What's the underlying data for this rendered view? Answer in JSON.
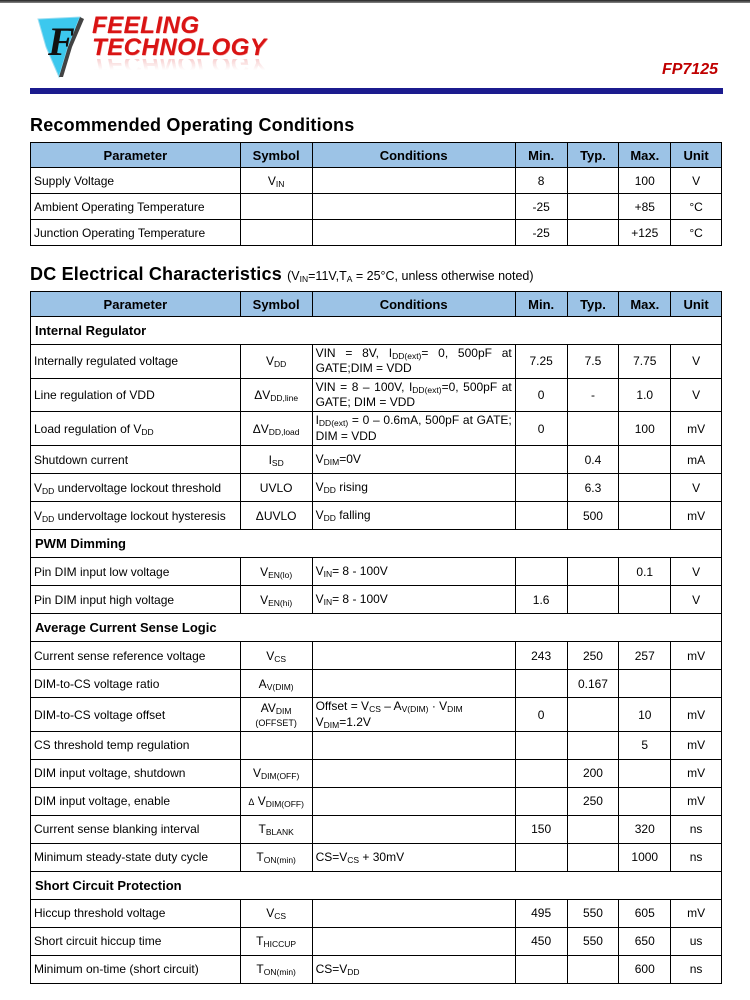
{
  "logo": {
    "line1": "FEELING",
    "line2": "TECHNOLOGY"
  },
  "page": {
    "part_number": "FP7125"
  },
  "colors": {
    "table_header_bg": "#9CC3E6",
    "brand_red": "#D91414",
    "part_number_red": "#C00000",
    "header_rule_navy": "#1B1B8E"
  },
  "roc_table": {
    "title": "Recommended Operating Conditions",
    "columns": [
      "Parameter",
      "Symbol",
      "Conditions",
      "Min.",
      "Typ.",
      "Max.",
      "Unit"
    ],
    "rows": [
      {
        "parameter": "Supply Voltage",
        "symbol": "V~IN~",
        "conditions": "",
        "min": "8",
        "typ": "",
        "max": "100",
        "unit": "V"
      },
      {
        "parameter": "Ambient Operating Temperature",
        "symbol": "",
        "conditions": "",
        "min": "-25",
        "typ": "",
        "max": "+85",
        "unit": "°C"
      },
      {
        "parameter": "Junction Operating Temperature",
        "symbol": "",
        "conditions": "",
        "min": "-25",
        "typ": "",
        "max": "+125",
        "unit": "°C"
      }
    ]
  },
  "dc_table": {
    "title": "DC Electrical Characteristics",
    "subtitle": "(V~IN~=11V,T~A~ = 25°C, unless otherwise noted)",
    "columns": [
      "Parameter",
      "Symbol",
      "Conditions",
      "Min.",
      "Typ.",
      "Max.",
      "Unit"
    ],
    "rows": [
      {
        "section": "Internal Regulator"
      },
      {
        "parameter": "Internally regulated voltage",
        "symbol": "V~DD~",
        "conditions": "VIN = 8V, I~DD(ext)~= 0, 500pF at GATE;DIM = VDD",
        "justify": true,
        "min": "7.25",
        "typ": "7.5",
        "max": "7.75",
        "unit": "V"
      },
      {
        "parameter": "Line regulation of VDD",
        "symbol": "ΔV~DD,line~",
        "conditions": "VIN = 8 – 100V, I~DD(ext)~=0, 500pF at GATE; DIM = VDD",
        "justify": true,
        "min": "0",
        "typ": "-",
        "max": "1.0",
        "unit": "V"
      },
      {
        "parameter": "Load regulation of V~DD~",
        "symbol": "ΔV~DD,load~",
        "conditions": "I~DD(ext)~ = 0 – 0.6mA, 500pF at GATE; DIM = VDD",
        "justify": true,
        "min": "0",
        "typ": "",
        "max": "100",
        "unit": "mV"
      },
      {
        "parameter": "Shutdown current",
        "symbol": "I~SD~",
        "conditions": "V~DIM~=0V",
        "min": "",
        "typ": "0.4",
        "max": "",
        "unit": "mA"
      },
      {
        "parameter": "V~DD~ undervoltage lockout threshold",
        "symbol": "UVLO",
        "conditions": "V~DD~ rising",
        "min": "",
        "typ": "6.3",
        "max": "",
        "unit": "V"
      },
      {
        "parameter": "V~DD~ undervoltage lockout hysteresis",
        "symbol": "ΔUVLO",
        "conditions": "V~DD~ falling",
        "min": "",
        "typ": "500",
        "max": "",
        "unit": "mV"
      },
      {
        "section": "PWM Dimming"
      },
      {
        "parameter": "Pin DIM input low voltage",
        "symbol": "V~EN(lo)~",
        "conditions": "V~IN~= 8 - 100V",
        "min": "",
        "typ": "",
        "max": "0.1",
        "unit": "V"
      },
      {
        "parameter": "Pin DIM input high voltage",
        "symbol": "V~EN(hi)~",
        "conditions": "V~IN~= 8 - 100V",
        "min": "1.6",
        "typ": "",
        "max": "",
        "unit": "V"
      },
      {
        "section": "Average Current Sense Logic"
      },
      {
        "parameter": "Current sense reference voltage",
        "symbol": "V~CS~",
        "conditions": "",
        "min": "243",
        "typ": "250",
        "max": "257",
        "unit": "mV"
      },
      {
        "parameter": "DIM-to-CS voltage ratio",
        "symbol": "A~V(DIM)~",
        "conditions": "",
        "min": "",
        "typ": "0.167",
        "max": "",
        "unit": ""
      },
      {
        "parameter": "DIM-to-CS voltage offset",
        "symbol": "AV~DIM~\n^(OFFSET)^",
        "conditions": "Offset = V~CS~ – A~V(DIM)~ · V~DIM~\nV~DIM~=1.2V",
        "min": "0",
        "typ": "",
        "max": "10",
        "unit": "mV"
      },
      {
        "parameter": "CS threshold temp regulation",
        "symbol": "",
        "conditions": "",
        "min": "",
        "typ": "",
        "max": "5",
        "unit": "mV"
      },
      {
        "parameter": "DIM input voltage, shutdown",
        "symbol": "V~DIM(OFF)~",
        "conditions": "",
        "min": "",
        "typ": "200",
        "max": "",
        "unit": "mV"
      },
      {
        "parameter": "DIM input voltage, enable",
        "symbol": "^Δ^ V~DIM(OFF)~",
        "conditions": "",
        "min": "",
        "typ": "250",
        "max": "",
        "unit": "mV"
      },
      {
        "parameter": "Current sense blanking interval",
        "symbol": "T~BLANK~",
        "conditions": "",
        "min": "150",
        "typ": "",
        "max": "320",
        "unit": "ns"
      },
      {
        "parameter": "Minimum steady-state duty cycle",
        "symbol": "T~ON(min)~",
        "conditions": "CS=V~CS~ + 30mV",
        "min": "",
        "typ": "",
        "max": "1000",
        "unit": "ns"
      },
      {
        "section": "Short Circuit Protection"
      },
      {
        "parameter": "Hiccup threshold voltage",
        "symbol": "V~CS~",
        "conditions": "",
        "min": "495",
        "typ": "550",
        "max": "605",
        "unit": "mV"
      },
      {
        "parameter": "Short circuit hiccup time",
        "symbol": "T~HICCUP~",
        "conditions": "",
        "min": "450",
        "typ": "550",
        "max": "650",
        "unit": "us"
      },
      {
        "parameter": "Minimum on-time (short circuit)",
        "symbol": "T~ON(min)~",
        "conditions": "CS=V~DD~",
        "min": "",
        "typ": "",
        "max": "600",
        "unit": "ns"
      }
    ]
  }
}
